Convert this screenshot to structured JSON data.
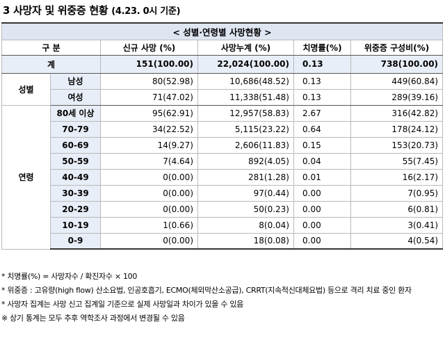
{
  "heading": {
    "title": "3  사망자 및 위중증 현황",
    "date": "(4.23. 0시 기준)"
  },
  "table": {
    "caption": "< 성별·연령별 사망현황 >",
    "headers": [
      "구 분",
      "신규 사망 (%)",
      "사망누계 (%)",
      "치명률(%)",
      "위중증 구성비(%)"
    ],
    "total": {
      "label": "계",
      "new": "151(100.00)",
      "cum": "22,024(100.00)",
      "rate": "0.13",
      "severe": "738(100.00)"
    },
    "sex_group": "성별",
    "sex_rows": [
      {
        "label": "남성",
        "new": "80(52.98)",
        "cum": "10,686(48.52)",
        "rate": "0.13",
        "severe": "449(60.84)"
      },
      {
        "label": "여성",
        "new": "71(47.02)",
        "cum": "11,338(51.48)",
        "rate": "0.13",
        "severe": "289(39.16)"
      }
    ],
    "age_group": "연령",
    "age_rows": [
      {
        "label": "80세 이상",
        "new": "95(62.91)",
        "cum": "12,957(58.83)",
        "rate": "2.67",
        "severe": "316(42.82)"
      },
      {
        "label": "70-79",
        "new": "34(22.52)",
        "cum": "5,115(23.22)",
        "rate": "0.64",
        "severe": "178(24.12)"
      },
      {
        "label": "60-69",
        "new": "14(9.27)",
        "cum": "2,606(11.83)",
        "rate": "0.15",
        "severe": "153(20.73)"
      },
      {
        "label": "50-59",
        "new": "7(4.64)",
        "cum": "892(4.05)",
        "rate": "0.04",
        "severe": "55(7.45)"
      },
      {
        "label": "40-49",
        "new": "0(0.00)",
        "cum": "281(1.28)",
        "rate": "0.01",
        "severe": "16(2.17)"
      },
      {
        "label": "30-39",
        "new": "0(0.00)",
        "cum": "97(0.44)",
        "rate": "0.00",
        "severe": "7(0.95)"
      },
      {
        "label": "20-29",
        "new": "0(0.00)",
        "cum": "50(0.23)",
        "rate": "0.00",
        "severe": "6(0.81)"
      },
      {
        "label": "10-19",
        "new": "1(0.66)",
        "cum": "8(0.04)",
        "rate": "0.00",
        "severe": "3(0.41)"
      },
      {
        "label": "0-9",
        "new": "0(0.00)",
        "cum": "18(0.08)",
        "rate": "0.00",
        "severe": "4(0.54)"
      }
    ]
  },
  "notes": [
    "* 치명률(%) = 사망자수 / 확진자수 × 100",
    "* 위중증 : 고유량(high flow) 산소요법, 인공호흡기, ECMO(체외막산소공급), CRRT(지속적신대체요법) 등으로 격리 치료 중인 환자",
    "* 사망자 집계는 사망 신고 집계일 기준으로 실제 사망일과 차이가 있을 수 있음",
    "※ 상기 통계는 모두 추후 역학조사 과정에서 변경될 수 있음"
  ]
}
